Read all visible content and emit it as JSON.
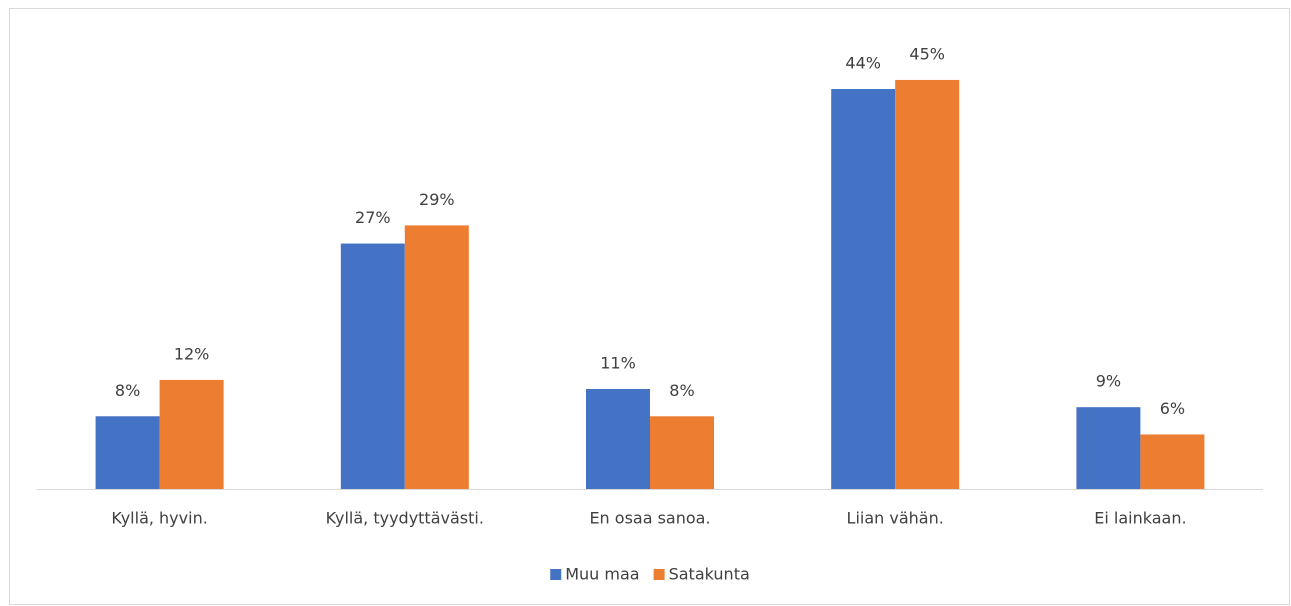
{
  "chart_data": {
    "type": "bar",
    "categories": [
      "Kyllä, hyvin.",
      "Kyllä, tyydyttävästi.",
      "En osaa sanoa.",
      "Liian vähän.",
      "Ei lainkaan."
    ],
    "series": [
      {
        "name": "Muu maa",
        "color": "#4472c4",
        "values": [
          8,
          27,
          11,
          44,
          9
        ],
        "value_labels": [
          "8%",
          "27%",
          "11%",
          "44%",
          "9%"
        ]
      },
      {
        "name": "Satakunta",
        "color": "#ed7d31",
        "values": [
          12,
          29,
          8,
          45,
          6
        ],
        "value_labels": [
          "12%",
          "29%",
          "8%",
          "45%",
          "6%"
        ]
      }
    ],
    "legend": "bottom"
  }
}
